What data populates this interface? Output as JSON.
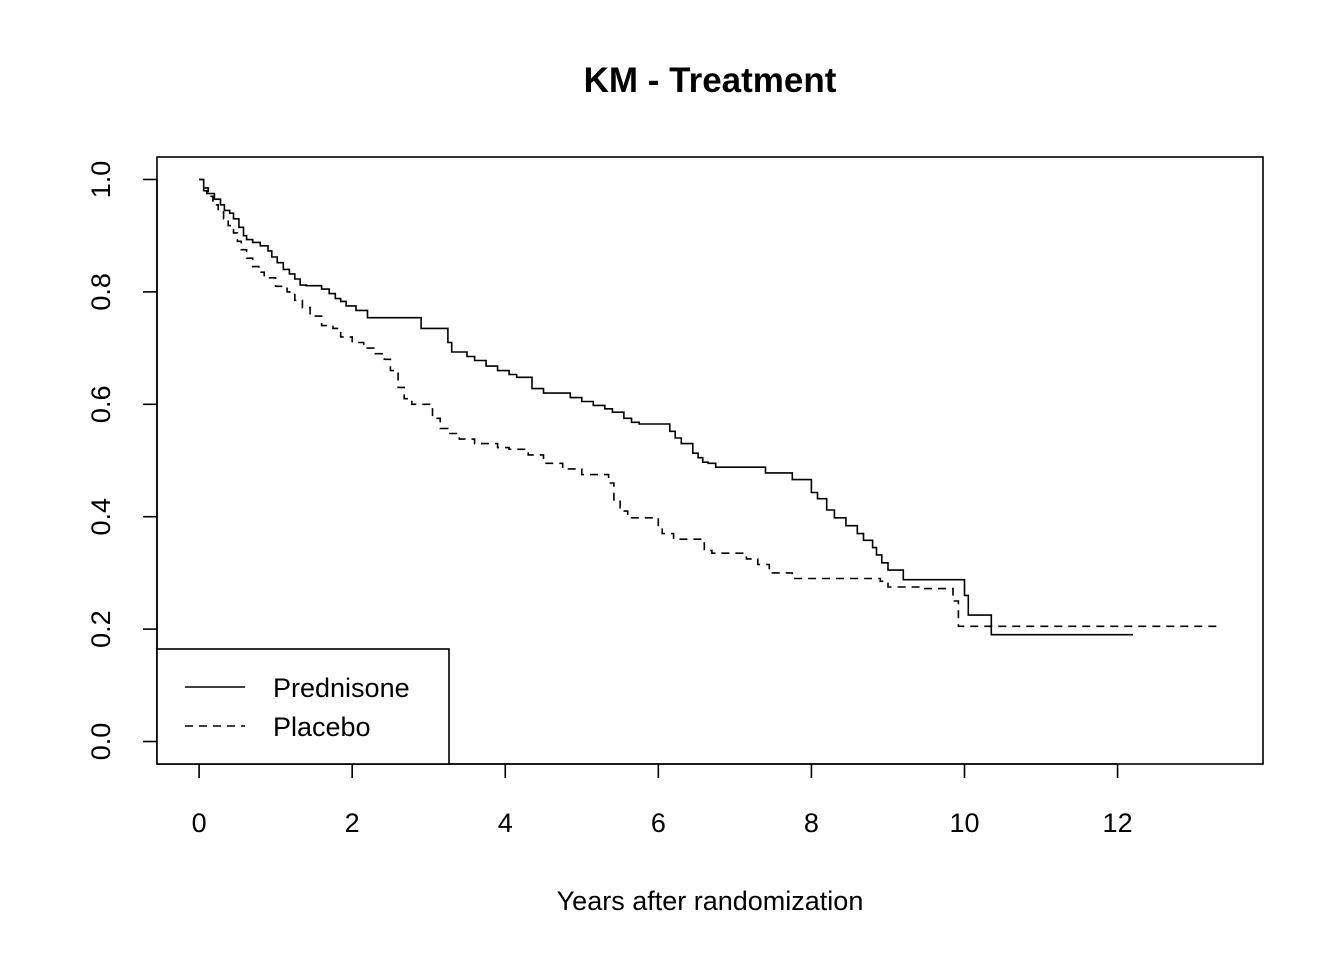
{
  "chart_data": {
    "type": "line",
    "title": "KM - Treatment",
    "xlabel": "Years after randomization",
    "ylabel": "",
    "xlim": [
      -0.55,
      13.9
    ],
    "ylim": [
      -0.04,
      1.04
    ],
    "xticks": [
      0,
      2,
      4,
      6,
      8,
      10,
      12
    ],
    "yticks": [
      0.0,
      0.2,
      0.4,
      0.6,
      0.8,
      1.0
    ],
    "xtick_labels": [
      "0",
      "2",
      "4",
      "6",
      "8",
      "10",
      "12"
    ],
    "ytick_labels": [
      "0.0",
      "0.2",
      "0.4",
      "0.6",
      "0.8",
      "1.0"
    ],
    "grid": false,
    "legend_position": "bottom-left",
    "series": [
      {
        "name": "Prednisone",
        "style": "solid",
        "color": "#000000",
        "x": [
          0,
          0.06,
          0.1,
          0.2,
          0.28,
          0.33,
          0.4,
          0.45,
          0.52,
          0.58,
          0.62,
          0.7,
          0.8,
          0.9,
          0.95,
          1.02,
          1.1,
          1.18,
          1.25,
          1.32,
          1.4,
          1.6,
          1.7,
          1.78,
          1.85,
          1.92,
          2.05,
          2.2,
          2.9,
          3.25,
          3.3,
          3.5,
          3.6,
          3.75,
          3.9,
          4.05,
          4.15,
          4.35,
          4.5,
          4.85,
          5.0,
          5.15,
          5.3,
          5.4,
          5.55,
          5.65,
          5.75,
          6.15,
          6.22,
          6.3,
          6.45,
          6.52,
          6.58,
          6.65,
          6.75,
          7.4,
          7.75,
          8.0,
          8.08,
          8.2,
          8.3,
          8.45,
          8.6,
          8.68,
          8.8,
          8.85,
          8.92,
          9.0,
          9.2,
          10.0,
          10.05,
          10.35,
          12.2
        ],
        "y": [
          1.0,
          0.98,
          0.975,
          0.965,
          0.955,
          0.945,
          0.94,
          0.93,
          0.915,
          0.9,
          0.893,
          0.888,
          0.882,
          0.873,
          0.862,
          0.852,
          0.84,
          0.832,
          0.823,
          0.812,
          0.811,
          0.805,
          0.797,
          0.788,
          0.783,
          0.775,
          0.767,
          0.754,
          0.735,
          0.71,
          0.693,
          0.685,
          0.678,
          0.668,
          0.66,
          0.653,
          0.648,
          0.628,
          0.62,
          0.612,
          0.605,
          0.598,
          0.592,
          0.586,
          0.575,
          0.568,
          0.565,
          0.552,
          0.54,
          0.53,
          0.513,
          0.505,
          0.497,
          0.495,
          0.488,
          0.478,
          0.466,
          0.443,
          0.432,
          0.412,
          0.398,
          0.384,
          0.37,
          0.358,
          0.345,
          0.332,
          0.318,
          0.305,
          0.288,
          0.26,
          0.225,
          0.19,
          0.19
        ]
      },
      {
        "name": "Placebo",
        "style": "dashed",
        "color": "#000000",
        "x": [
          0,
          0.06,
          0.12,
          0.18,
          0.25,
          0.32,
          0.38,
          0.45,
          0.5,
          0.55,
          0.62,
          0.7,
          0.78,
          0.85,
          1.0,
          1.15,
          1.25,
          1.35,
          1.45,
          1.6,
          1.75,
          1.85,
          2.0,
          2.15,
          2.3,
          2.42,
          2.5,
          2.6,
          2.68,
          2.78,
          3.05,
          3.15,
          3.25,
          3.4,
          3.6,
          3.9,
          4.05,
          4.3,
          4.5,
          4.75,
          5.0,
          5.35,
          5.42,
          5.5,
          5.6,
          6.0,
          6.05,
          6.2,
          6.6,
          6.7,
          7.15,
          7.3,
          7.45,
          7.75,
          8.9,
          9.0,
          9.45,
          9.85,
          9.92,
          13.3
        ],
        "y": [
          1.0,
          0.985,
          0.97,
          0.955,
          0.945,
          0.93,
          0.918,
          0.905,
          0.89,
          0.875,
          0.86,
          0.845,
          0.835,
          0.825,
          0.81,
          0.8,
          0.785,
          0.772,
          0.757,
          0.74,
          0.735,
          0.72,
          0.71,
          0.7,
          0.69,
          0.68,
          0.66,
          0.63,
          0.61,
          0.6,
          0.575,
          0.557,
          0.548,
          0.538,
          0.53,
          0.523,
          0.52,
          0.51,
          0.495,
          0.485,
          0.475,
          0.46,
          0.43,
          0.41,
          0.398,
          0.38,
          0.37,
          0.36,
          0.34,
          0.335,
          0.325,
          0.315,
          0.3,
          0.29,
          0.285,
          0.275,
          0.272,
          0.25,
          0.205,
          0.205
        ]
      }
    ]
  }
}
